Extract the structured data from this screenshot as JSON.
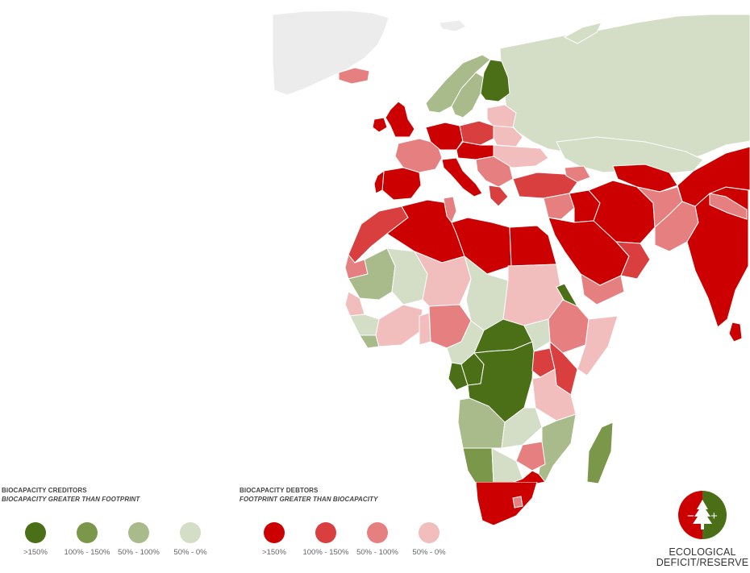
{
  "legend": {
    "creditors": {
      "title": "BIOCAPACITY CREDITORS",
      "subtitle": "BIOCAPACITY GREATER THAN FOOTPRINT",
      "items": [
        {
          "label": ">150%",
          "color": "#4a6f16"
        },
        {
          "label": "100% - 150%",
          "color": "#7a974a"
        },
        {
          "label": "50% - 100%",
          "color": "#a9ba8b"
        },
        {
          "label": "50% - 0%",
          "color": "#d4ddc5"
        }
      ]
    },
    "debtors": {
      "title": "BIOCAPACITY DEBTORS",
      "subtitle": "FOOTPRINT GREATER THAN BIOCAPACITY",
      "items": [
        {
          "label": ">150%",
          "color": "#cc0000"
        },
        {
          "label": "100% - 150%",
          "color": "#d93f3f"
        },
        {
          "label": "50% - 100%",
          "color": "#e67f7f"
        },
        {
          "label": "50% - 0%",
          "color": "#f2bdbd"
        }
      ]
    }
  },
  "badge": {
    "label_line1": "ECOLOGICAL",
    "label_line2": "DEFICIT/RESERVE",
    "minus_symbol": "−",
    "plus_symbol": "+",
    "left_color": "#cc0000",
    "right_color": "#4a6f16",
    "icon": "tree-icon"
  },
  "map": {
    "no_data_color": "#ececec",
    "border_color": "#ffffff"
  }
}
